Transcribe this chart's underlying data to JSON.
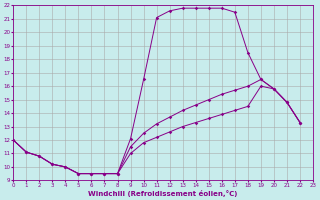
{
  "xlabel": "Windchill (Refroidissement éolien,°C)",
  "bg_color": "#c8ecec",
  "grid_color": "#aaaaaa",
  "line_color": "#880088",
  "xmin": 0,
  "xmax": 23,
  "ymin": 9,
  "ymax": 22,
  "curve_top": {
    "x": [
      0,
      1,
      2,
      3,
      4,
      5,
      6,
      7,
      8,
      9,
      10,
      11,
      12,
      13,
      14,
      15,
      16,
      17,
      18,
      19,
      20,
      21,
      22
    ],
    "y": [
      12,
      11.1,
      10.8,
      10.2,
      10.0,
      9.5,
      9.5,
      9.5,
      9.5,
      12.1,
      16.5,
      21.1,
      21.6,
      21.8,
      21.8,
      21.8,
      21.8,
      21.5,
      18.5,
      16.5,
      15.8,
      14.8,
      13.3
    ]
  },
  "curve_mid": {
    "x": [
      0,
      1,
      2,
      3,
      4,
      5,
      6,
      7,
      8,
      9,
      10,
      11,
      12,
      13,
      14,
      15,
      16,
      17,
      18,
      19,
      20,
      21,
      22
    ],
    "y": [
      12,
      11.1,
      10.8,
      10.2,
      10.0,
      9.5,
      9.5,
      9.5,
      9.5,
      11.5,
      12.5,
      13.2,
      13.7,
      14.2,
      14.6,
      15.0,
      15.4,
      15.7,
      16.0,
      16.5,
      15.8,
      14.8,
      13.3
    ]
  },
  "curve_bot": {
    "x": [
      0,
      1,
      2,
      3,
      4,
      5,
      6,
      7,
      8,
      9,
      10,
      11,
      12,
      13,
      14,
      15,
      16,
      17,
      18,
      19,
      20,
      21,
      22
    ],
    "y": [
      12,
      11.1,
      10.8,
      10.2,
      10.0,
      9.5,
      9.5,
      9.5,
      9.5,
      11.0,
      11.8,
      12.2,
      12.6,
      13.0,
      13.3,
      13.6,
      13.9,
      14.2,
      14.5,
      16.0,
      15.8,
      14.8,
      13.3
    ]
  }
}
